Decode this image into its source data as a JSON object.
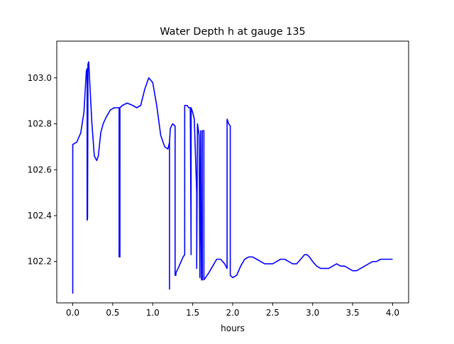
{
  "chart_data": {
    "type": "line",
    "title": "Water Depth h at gauge 135",
    "xlabel": "hours",
    "ylabel": "",
    "xlim": [
      -0.2,
      4.2
    ],
    "ylim": [
      102.02,
      103.16
    ],
    "x_ticks": [
      0.0,
      0.5,
      1.0,
      1.5,
      2.0,
      2.5,
      3.0,
      3.5,
      4.0
    ],
    "x_tick_labels": [
      "0.0",
      "0.5",
      "1.0",
      "1.5",
      "2.0",
      "2.5",
      "3.0",
      "3.5",
      "4.0"
    ],
    "y_ticks": [
      102.2,
      102.4,
      102.6,
      102.8,
      103.0
    ],
    "y_tick_labels": [
      "102.2",
      "102.4",
      "102.6",
      "102.8",
      "103.0"
    ],
    "grid": false,
    "legend": "none",
    "series": [
      {
        "color": "#0000ff",
        "x": [
          0.0,
          0.0,
          0.0,
          0.05,
          0.1,
          0.14,
          0.17,
          0.18,
          0.18,
          0.185,
          0.19,
          0.19,
          0.2,
          0.22,
          0.24,
          0.27,
          0.3,
          0.32,
          0.35,
          0.38,
          0.42,
          0.47,
          0.52,
          0.57,
          0.58,
          0.58,
          0.59,
          0.59,
          0.62,
          0.68,
          0.75,
          0.8,
          0.85,
          0.9,
          0.95,
          1.0,
          1.05,
          1.1,
          1.15,
          1.19,
          1.21,
          1.21,
          1.21,
          1.22,
          1.25,
          1.28,
          1.28,
          1.29,
          1.29,
          1.33,
          1.38,
          1.4,
          1.4,
          1.43,
          1.45,
          1.47,
          1.48,
          1.48,
          1.5,
          1.52,
          1.55,
          1.55,
          1.56,
          1.58,
          1.59,
          1.6,
          1.61,
          1.62,
          1.62,
          1.64,
          1.64,
          1.66,
          1.7,
          1.75,
          1.8,
          1.85,
          1.9,
          1.93,
          1.93,
          1.95,
          1.97,
          1.97,
          2.0,
          2.05,
          2.1,
          2.15,
          2.2,
          2.25,
          2.3,
          2.35,
          2.4,
          2.45,
          2.5,
          2.55,
          2.6,
          2.65,
          2.7,
          2.75,
          2.8,
          2.85,
          2.9,
          2.93,
          2.96,
          3.0,
          3.05,
          3.1,
          3.15,
          3.2,
          3.25,
          3.3,
          3.35,
          3.4,
          3.45,
          3.5,
          3.55,
          3.6,
          3.65,
          3.7,
          3.75,
          3.8,
          3.85,
          3.9,
          3.95,
          4.0
        ],
        "y": [
          102.06,
          102.71,
          102.71,
          102.72,
          102.76,
          102.85,
          103.03,
          103.04,
          102.38,
          102.39,
          102.95,
          103.06,
          103.07,
          102.93,
          102.8,
          102.66,
          102.64,
          102.66,
          102.76,
          102.8,
          102.83,
          102.86,
          102.87,
          102.87,
          102.87,
          102.22,
          102.22,
          102.87,
          102.88,
          102.89,
          102.88,
          102.87,
          102.88,
          102.95,
          103.0,
          102.98,
          102.88,
          102.75,
          102.7,
          102.69,
          102.72,
          102.08,
          102.72,
          102.78,
          102.8,
          102.79,
          102.14,
          102.14,
          102.15,
          102.18,
          102.22,
          102.23,
          102.88,
          102.88,
          102.87,
          102.87,
          102.23,
          102.87,
          102.85,
          102.82,
          102.5,
          102.17,
          102.8,
          102.75,
          102.13,
          102.77,
          102.12,
          102.12,
          102.77,
          102.77,
          102.12,
          102.13,
          102.15,
          102.18,
          102.21,
          102.21,
          102.19,
          102.17,
          102.82,
          102.8,
          102.79,
          102.14,
          102.13,
          102.14,
          102.18,
          102.21,
          102.22,
          102.22,
          102.21,
          102.2,
          102.19,
          102.19,
          102.19,
          102.2,
          102.21,
          102.21,
          102.2,
          102.19,
          102.19,
          102.21,
          102.23,
          102.23,
          102.22,
          102.2,
          102.18,
          102.17,
          102.17,
          102.17,
          102.18,
          102.19,
          102.18,
          102.18,
          102.17,
          102.16,
          102.16,
          102.17,
          102.18,
          102.19,
          102.2,
          102.2,
          102.21,
          102.21,
          102.21,
          102.21
        ]
      }
    ]
  }
}
